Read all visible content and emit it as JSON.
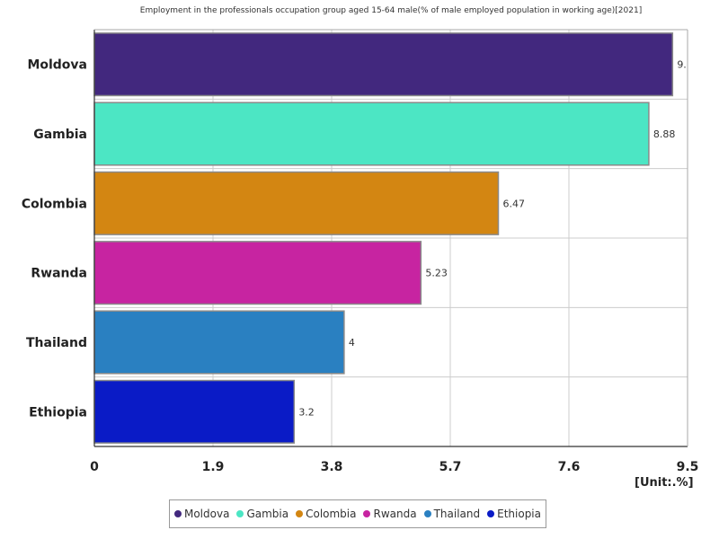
{
  "chart_data": {
    "type": "bar",
    "orientation": "horizontal",
    "title": "Employment in the professionals occupation group aged 15-64 male(% of male employed population in working age)[2021]",
    "unit": "[Unit:.%]",
    "categories": [
      "Moldova",
      "Gambia",
      "Colombia",
      "Rwanda",
      "Thailand",
      "Ethiopia"
    ],
    "values": [
      9.26,
      8.88,
      6.47,
      5.23,
      4,
      3.2
    ],
    "value_labels": [
      "9.…",
      "8.88",
      "6.47",
      "5.23",
      "4",
      "3.2"
    ],
    "colors": [
      "#42287e",
      "#4ce6c4",
      "#d38612",
      "#c724a1",
      "#2a80c1",
      "#0a1bc6"
    ],
    "xlim": [
      0,
      9.5
    ],
    "xticks": [
      "0",
      "1.9",
      "3.8",
      "5.7",
      "7.6",
      "9.5"
    ],
    "grid": true,
    "legend_placement": "bottom"
  }
}
